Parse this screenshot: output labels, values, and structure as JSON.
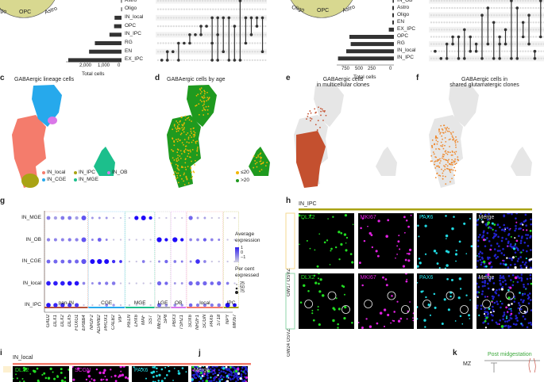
{
  "upset_left": {
    "sets": [
      "Astro",
      "Oligo",
      "IN_local",
      "OPC",
      "IN_IPC",
      "RG",
      "EN",
      "EX_IPC"
    ],
    "totals": [
      20,
      15,
      300,
      320,
      520,
      1150,
      1400,
      2300
    ],
    "ticks": [
      "2,000",
      "1,000",
      "0"
    ],
    "xlabel": "Total cells",
    "pie_labels": [
      "Oligo",
      "OPC",
      "Astro"
    ],
    "combos": [
      [
        7
      ],
      [
        6,
        7
      ],
      [
        6
      ],
      [
        5,
        7
      ],
      [
        5
      ],
      [
        4,
        5
      ],
      [
        4
      ],
      [
        3,
        4
      ],
      [
        3
      ],
      [
        2,
        5,
        7
      ],
      [
        2,
        4,
        7
      ],
      [
        2,
        6
      ],
      [
        2,
        7
      ],
      [
        3,
        7
      ],
      [
        0,
        7
      ],
      [
        2,
        5
      ],
      [
        2,
        4
      ],
      [
        2,
        3
      ],
      [
        2,
        6
      ]
    ]
  },
  "upset_right": {
    "sets": [
      "IN_OB",
      "Astro",
      "Oligo",
      "EN",
      "EX_IPC",
      "OPC",
      "RG",
      "IN_local",
      "IN_IPC"
    ],
    "totals": [
      20,
      25,
      25,
      25,
      80,
      700,
      680,
      750,
      880
    ],
    "ticks": [
      "750",
      "500",
      "250",
      "0"
    ],
    "xlabel": "Total cells",
    "pie_labels": [
      "Oligo",
      "OPC",
      "Astro"
    ],
    "combos": [
      [
        7
      ],
      [
        8
      ],
      [
        6,
        8
      ],
      [
        5,
        6
      ],
      [
        5,
        8
      ],
      [
        4,
        8
      ],
      [
        5,
        7
      ],
      [
        6,
        7
      ],
      [
        2,
        8
      ],
      [
        1,
        6
      ],
      [
        3,
        8
      ],
      [
        5,
        6,
        8
      ],
      [
        4,
        6
      ],
      [
        0,
        8
      ],
      [
        1,
        8
      ],
      [
        3,
        5
      ],
      [
        2,
        6
      ],
      [
        7,
        8
      ],
      [
        0,
        5
      ]
    ]
  },
  "panel_c": {
    "label": "c",
    "title": "GABAergic lineage cells",
    "legend": [
      {
        "name": "IN_local",
        "color": "#f47c6c"
      },
      {
        "name": "IN_IPC",
        "color": "#a9a314"
      },
      {
        "name": "IN_OB",
        "color": "#da77e8"
      },
      {
        "name": "IN_CGE",
        "color": "#26a9ec"
      },
      {
        "name": "IN_MGE",
        "color": "#1cbf8c"
      }
    ]
  },
  "panel_d": {
    "label": "d",
    "title": "GABAergic cells by age",
    "legend": [
      {
        "name": "≤20",
        "color": "#f2b705"
      },
      {
        "name": ">20",
        "color": "#1f9a1f"
      }
    ]
  },
  "panel_e": {
    "label": "e",
    "title1": "GABAergic cells",
    "title2": "in multicellular clones",
    "color": "#c4502f"
  },
  "panel_f": {
    "label": "f",
    "title1": "GABAergic cells in",
    "title2": "shared glutamatergic clones",
    "color": "#ee8a30"
  },
  "panel_g": {
    "label": "g",
    "rows": [
      "IN_MGE",
      "IN_OB",
      "IN_CGE",
      "IN_local",
      "IN_IPC"
    ],
    "genes": [
      "GAD2",
      "DLX1",
      "DLX2",
      "DLX5",
      "FOXG1",
      "ERBB4",
      "NR2F2",
      "ADARB2",
      "PROX1",
      "CALB2",
      "VIP",
      "RELN",
      "LHX6",
      "MAF",
      "SST",
      "MEIS2",
      "SP8",
      "PBX3",
      "TSHZ1",
      "SOX6",
      "NR2F1",
      "SCGN",
      "PAX6",
      "ST18",
      "NPY",
      "MKI67"
    ],
    "groups": [
      {
        "name": "pan-IN",
        "n": 6,
        "color": "#b5533c"
      },
      {
        "name": "CGE",
        "n": 5,
        "color": "#26a9ec"
      },
      {
        "name": "MGE",
        "n": 4,
        "color": "#1cbf8c"
      },
      {
        "name": "LGE",
        "n": 2,
        "color": "#aaaaaa"
      },
      {
        "name": "OB",
        "n": 2,
        "color": "#da77e8"
      },
      {
        "name": "local",
        "n": 5,
        "color": "#f47c6c"
      },
      {
        "name": "IPC",
        "n": 2,
        "color": "#a9a314"
      }
    ],
    "pct": [
      [
        40,
        30,
        40,
        40,
        30,
        70,
        10,
        10,
        10,
        5,
        5,
        5,
        50,
        70,
        30,
        5,
        5,
        5,
        5,
        50,
        10,
        10,
        5,
        5,
        5,
        5
      ],
      [
        30,
        25,
        25,
        30,
        30,
        70,
        10,
        40,
        10,
        5,
        5,
        5,
        5,
        5,
        5,
        75,
        30,
        75,
        30,
        20,
        20,
        30,
        20,
        10,
        5,
        5
      ],
      [
        40,
        45,
        40,
        40,
        45,
        75,
        70,
        75,
        70,
        30,
        20,
        5,
        5,
        20,
        5,
        10,
        30,
        20,
        10,
        10,
        60,
        20,
        5,
        5,
        5,
        5
      ],
      [
        60,
        60,
        60,
        60,
        60,
        20,
        10,
        20,
        30,
        35,
        5,
        5,
        5,
        5,
        5,
        50,
        30,
        10,
        10,
        50,
        50,
        50,
        35,
        50,
        20,
        5
      ],
      [
        60,
        55,
        55,
        50,
        50,
        5,
        5,
        5,
        20,
        15,
        5,
        5,
        5,
        5,
        5,
        50,
        20,
        20,
        15,
        35,
        30,
        30,
        30,
        35,
        70,
        40
      ]
    ],
    "avg": [
      [
        -0.2,
        -0.6,
        -0.2,
        -0.2,
        -0.6,
        0.2,
        -0.5,
        -0.5,
        -0.5,
        -1,
        -1,
        -1,
        1,
        1,
        1,
        -1,
        -1,
        -1,
        -1,
        0,
        -0.6,
        -0.6,
        -1,
        -1,
        -1,
        -1
      ],
      [
        -0.3,
        -0.3,
        -0.3,
        -0.2,
        -0.3,
        0.2,
        -0.3,
        0.1,
        -0.3,
        -1,
        -1,
        -1,
        -1,
        -1,
        -1,
        1,
        1,
        1,
        1,
        -0.3,
        -0.3,
        0.1,
        -0.3,
        -0.3,
        -1,
        -1
      ],
      [
        0,
        0,
        0,
        0,
        0,
        0.2,
        1,
        1,
        1,
        0.6,
        0.6,
        -1,
        -1,
        -0.2,
        -1,
        -0.4,
        0,
        -0.2,
        -0.2,
        -0.3,
        0.6,
        -0.3,
        -1,
        -1,
        -1,
        -1
      ],
      [
        0.8,
        0.8,
        0.8,
        0.9,
        0.9,
        -0.3,
        -0.4,
        -0.2,
        -0.2,
        -0.2,
        -1,
        -1,
        -1,
        -1,
        -1,
        0,
        0,
        -0.5,
        -0.5,
        0,
        0,
        0,
        0,
        0,
        -0.2,
        -1
      ],
      [
        0.9,
        0.7,
        0.7,
        0.5,
        0.5,
        -1,
        -1,
        -1,
        -0.3,
        -0.5,
        -1,
        -1,
        -1,
        -1,
        -1,
        0,
        -0.4,
        -0.4,
        -0.4,
        0,
        -0.2,
        -0.2,
        -0.2,
        -0.2,
        1,
        1
      ]
    ],
    "legend_avg_title": [
      "Average",
      "expression"
    ],
    "legend_avg_ticks": [
      "1",
      "0",
      "−1"
    ],
    "legend_pct_title": [
      "Per cent",
      "expressed"
    ],
    "legend_pct_ticks": [
      "25",
      "50",
      "75"
    ]
  },
  "panel_h": {
    "label": "h",
    "title": "IN_IPC",
    "title_color": "#a9a314",
    "rows": [
      {
        "label": "GW17 OSVZ",
        "color": "#f6d990"
      },
      {
        "label": "GW24 OSVZ",
        "color": "#8fd6a8"
      }
    ],
    "channels": [
      {
        "name": "DLX2",
        "color": "#22dd22"
      },
      {
        "name": "MKI67",
        "color": "#e020e0"
      },
      {
        "name": "PAX6",
        "color": "#20d8e0"
      },
      {
        "name": "Merge",
        "color": "#dddddd"
      }
    ]
  },
  "panel_i": {
    "label": "i",
    "title": "IN_local",
    "title_color": "#f47c6c",
    "channels": [
      {
        "name": "DLX2",
        "color": "#22dd22"
      },
      {
        "name": "SCGN",
        "color": "#e020e0"
      },
      {
        "name": "PAX6",
        "color": "#20d8e0"
      },
      {
        "name": "Merge",
        "color": "#dddddd"
      }
    ]
  },
  "panel_j": {
    "label": "j"
  },
  "panel_k": {
    "label": "k",
    "title": "Post midgestation",
    "title_color": "#3aa83a",
    "zone": "MZ"
  }
}
